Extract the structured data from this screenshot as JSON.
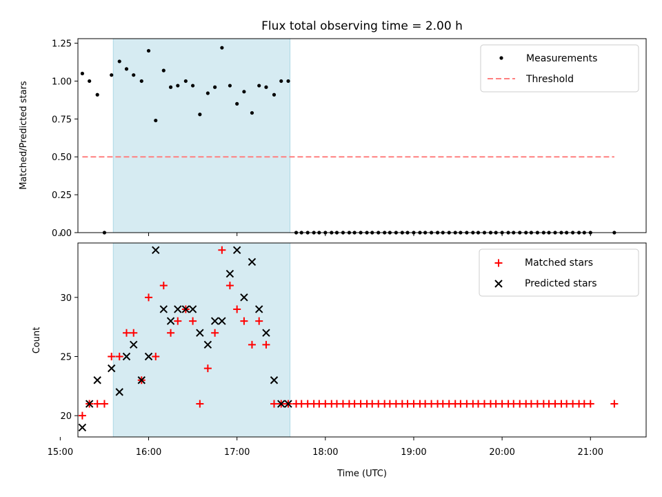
{
  "chart_data": {
    "title": "Flux total observing time = 2.00 h",
    "xlabel": "Time (UTC)",
    "colors": {
      "measurement": "#000000",
      "threshold": "#ff7f7f",
      "matched": "#ff0000",
      "predicted": "#000000",
      "shade": "#add8e6"
    },
    "xlim": [
      15.2,
      21.63
    ],
    "xticks": [
      15,
      16,
      17,
      18,
      19,
      20,
      21
    ],
    "xtick_labels": [
      "15:00",
      "16:00",
      "17:00",
      "18:00",
      "19:00",
      "20:00",
      "21:00"
    ],
    "shaded_span": [
      15.6,
      17.6
    ],
    "panels": [
      {
        "type": "scatter",
        "ylabel": "Matched/Predicted stars",
        "ylim": [
          0,
          1.28
        ],
        "yticks": [
          0,
          0.25,
          0.5,
          0.75,
          1.0,
          1.25
        ],
        "ytick_labels": [
          "0.00",
          "0.25",
          "0.50",
          "0.75",
          "1.00",
          "1.25"
        ],
        "legend": [
          "Measurements",
          "Threshold"
        ],
        "threshold": {
          "y": 0.5,
          "x": [
            15.25,
            21.27
          ]
        },
        "series": [
          {
            "name": "Measurements",
            "x": [
              15.25,
              15.33,
              15.42,
              15.5,
              15.58,
              15.67,
              15.75,
              15.83,
              15.92,
              16.0,
              16.08,
              16.17,
              16.25,
              16.33,
              16.42,
              16.5,
              16.58,
              16.67,
              16.75,
              16.83,
              16.92,
              17.0,
              17.08,
              17.17,
              17.25,
              17.33,
              17.42,
              17.5,
              17.58,
              17.67,
              17.73,
              17.8,
              17.87,
              17.93,
              18.0,
              18.07,
              18.13,
              18.2,
              18.27,
              18.33,
              18.4,
              18.47,
              18.53,
              18.6,
              18.67,
              18.73,
              18.8,
              18.87,
              18.93,
              19.0,
              19.07,
              19.13,
              19.2,
              19.27,
              19.33,
              19.4,
              19.47,
              19.53,
              19.6,
              19.67,
              19.73,
              19.8,
              19.87,
              19.93,
              20.0,
              20.07,
              20.13,
              20.2,
              20.27,
              20.33,
              20.4,
              20.47,
              20.53,
              20.6,
              20.67,
              20.73,
              20.8,
              20.87,
              20.93,
              21.0,
              21.27
            ],
            "y": [
              1.05,
              1.0,
              0.91,
              0.0,
              1.04,
              1.13,
              1.08,
              1.04,
              1.0,
              1.2,
              0.74,
              1.07,
              0.96,
              0.97,
              1.0,
              0.97,
              0.78,
              0.92,
              0.96,
              1.22,
              0.97,
              0.85,
              0.93,
              0.79,
              0.97,
              0.96,
              0.91,
              1.0,
              1.0,
              0,
              0,
              0,
              0,
              0,
              0,
              0,
              0,
              0,
              0,
              0,
              0,
              0,
              0,
              0,
              0,
              0,
              0,
              0,
              0,
              0,
              0,
              0,
              0,
              0,
              0,
              0,
              0,
              0,
              0,
              0,
              0,
              0,
              0,
              0,
              0,
              0,
              0,
              0,
              0,
              0,
              0,
              0,
              0,
              0,
              0,
              0,
              0,
              0,
              0,
              0,
              0
            ]
          }
        ]
      },
      {
        "type": "scatter",
        "ylabel": "Count",
        "ylim": [
          18.2,
          34.6
        ],
        "yticks": [
          20,
          25,
          30
        ],
        "ytick_labels": [
          "20",
          "25",
          "30"
        ],
        "legend": [
          "Matched stars",
          "Predicted stars"
        ],
        "series": [
          {
            "name": "Matched stars",
            "x": [
              15.25,
              15.33,
              15.42,
              15.5,
              15.58,
              15.67,
              15.75,
              15.83,
              15.92,
              16.0,
              16.08,
              16.17,
              16.25,
              16.33,
              16.42,
              16.5,
              16.58,
              16.67,
              16.75,
              16.83,
              16.92,
              17.0,
              17.08,
              17.17,
              17.25,
              17.33,
              17.42,
              17.5,
              17.58,
              17.67,
              17.73,
              17.8,
              17.87,
              17.93,
              18.0,
              18.07,
              18.13,
              18.2,
              18.27,
              18.33,
              18.4,
              18.47,
              18.53,
              18.6,
              18.67,
              18.73,
              18.8,
              18.87,
              18.93,
              19.0,
              19.07,
              19.13,
              19.2,
              19.27,
              19.33,
              19.4,
              19.47,
              19.53,
              19.6,
              19.67,
              19.73,
              19.8,
              19.87,
              19.93,
              20.0,
              20.07,
              20.13,
              20.2,
              20.27,
              20.33,
              20.4,
              20.47,
              20.53,
              20.6,
              20.67,
              20.73,
              20.8,
              20.87,
              20.93,
              21.0,
              21.27
            ],
            "y": [
              20,
              21,
              21,
              21,
              25,
              25,
              27,
              27,
              23,
              30,
              25,
              31,
              27,
              28,
              29,
              28,
              21,
              24,
              27,
              34,
              31,
              29,
              28,
              26,
              28,
              26,
              21,
              21,
              21,
              21,
              21,
              21,
              21,
              21,
              21,
              21,
              21,
              21,
              21,
              21,
              21,
              21,
              21,
              21,
              21,
              21,
              21,
              21,
              21,
              21,
              21,
              21,
              21,
              21,
              21,
              21,
              21,
              21,
              21,
              21,
              21,
              21,
              21,
              21,
              21,
              21,
              21,
              21,
              21,
              21,
              21,
              21,
              21,
              21,
              21,
              21,
              21,
              21,
              21,
              21,
              21
            ]
          },
          {
            "name": "Predicted stars",
            "x": [
              15.25,
              15.33,
              15.42,
              15.58,
              15.67,
              15.75,
              15.83,
              15.92,
              16.0,
              16.08,
              16.17,
              16.25,
              16.33,
              16.42,
              16.5,
              16.58,
              16.67,
              16.75,
              16.83,
              16.92,
              17.0,
              17.08,
              17.17,
              17.25,
              17.33,
              17.42,
              17.5,
              17.58
            ],
            "y": [
              19,
              21,
              23,
              24,
              22,
              25,
              26,
              23,
              25,
              34,
              29,
              28,
              29,
              29,
              29,
              27,
              26,
              28,
              28,
              32,
              34,
              30,
              33,
              29,
              27,
              23,
              21,
              21
            ]
          }
        ]
      }
    ]
  }
}
